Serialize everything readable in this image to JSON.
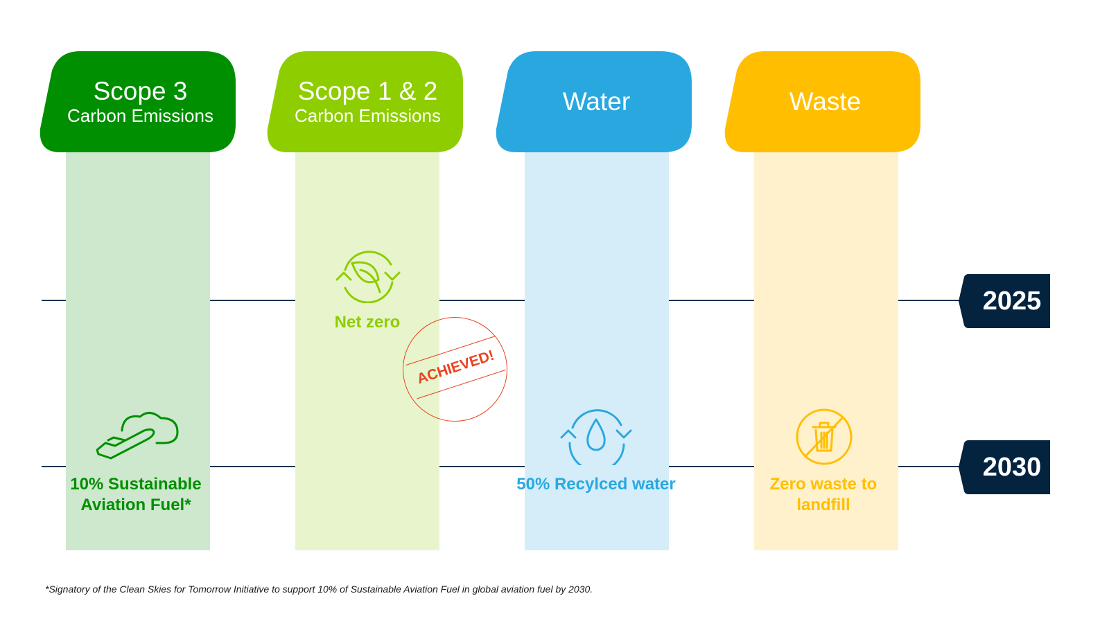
{
  "columns": [
    {
      "title": "Scope 3",
      "subtitle": "Carbon Emissions",
      "color": "#008f00",
      "light": "#cde8cd",
      "goal_2030": "10% Sustainable Aviation Fuel*",
      "icon": "plane-cloud-icon"
    },
    {
      "title": "Scope 1 & 2",
      "subtitle": "Carbon Emissions",
      "color": "#8ecd00",
      "light": "#e8f5cc",
      "goal_2025": "Net zero",
      "icon": "leaf-recycle-icon",
      "stamp": "ACHIEVED!"
    },
    {
      "title": "Water",
      "color": "#29a8e0",
      "light": "#d4edf9",
      "goal_2030": "50% Recylced water",
      "icon": "water-recycle-icon"
    },
    {
      "title": "Waste",
      "color": "#ffbf00",
      "light": "#fff1cc",
      "goal_2030": "Zero waste to landfill",
      "icon": "no-trash-icon"
    }
  ],
  "years": [
    "2025",
    "2030"
  ],
  "year_color": "#03233f",
  "stamp_color": "#e8431f",
  "footnote": "*Signatory of the Clean Skies for Tomorrow Initiative to support 10% of Sustainable Aviation Fuel in global aviation fuel by 2030."
}
